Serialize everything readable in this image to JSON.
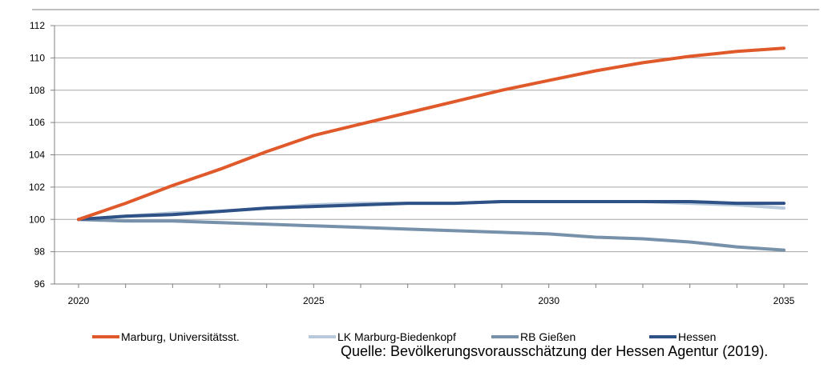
{
  "chart_data": {
    "type": "line",
    "x": [
      2020,
      2021,
      2022,
      2023,
      2024,
      2025,
      2026,
      2027,
      2028,
      2029,
      2030,
      2031,
      2032,
      2033,
      2034,
      2035
    ],
    "x_tick_labels": [
      "2020",
      "2025",
      "2030",
      "2035"
    ],
    "y_tick_labels": [
      "96",
      "98",
      "100",
      "102",
      "104",
      "106",
      "108",
      "110",
      "112"
    ],
    "ylim": [
      96,
      112
    ],
    "grid": "horizontal",
    "legend_position": "bottom",
    "series": [
      {
        "name": "Marburg, Universitätsst.",
        "color": "#e0592a",
        "values": [
          100.0,
          101.0,
          102.1,
          103.1,
          104.2,
          105.2,
          105.9,
          106.6,
          107.3,
          108.0,
          108.6,
          109.2,
          109.7,
          110.1,
          110.4,
          110.6
        ]
      },
      {
        "name": "LK Marburg-Biedenkopf",
        "color": "#b8c9dc",
        "values": [
          100.0,
          100.2,
          100.4,
          100.5,
          100.7,
          100.9,
          101.0,
          101.0,
          101.0,
          101.1,
          101.1,
          101.1,
          101.1,
          101.0,
          100.9,
          100.7
        ]
      },
      {
        "name": "RB Gießen",
        "color": "#7891aa",
        "values": [
          100.0,
          99.9,
          99.9,
          99.8,
          99.7,
          99.6,
          99.5,
          99.4,
          99.3,
          99.2,
          99.1,
          98.9,
          98.8,
          98.6,
          98.3,
          98.1
        ]
      },
      {
        "name": "Hessen",
        "color": "#2e5186",
        "values": [
          100.0,
          100.2,
          100.3,
          100.5,
          100.7,
          100.8,
          100.9,
          101.0,
          101.0,
          101.1,
          101.1,
          101.1,
          101.1,
          101.1,
          101.0,
          101.0
        ]
      }
    ],
    "source": "Quelle: Bevölkerungsvorausschätzung der Hessen Agentur (2019)."
  }
}
